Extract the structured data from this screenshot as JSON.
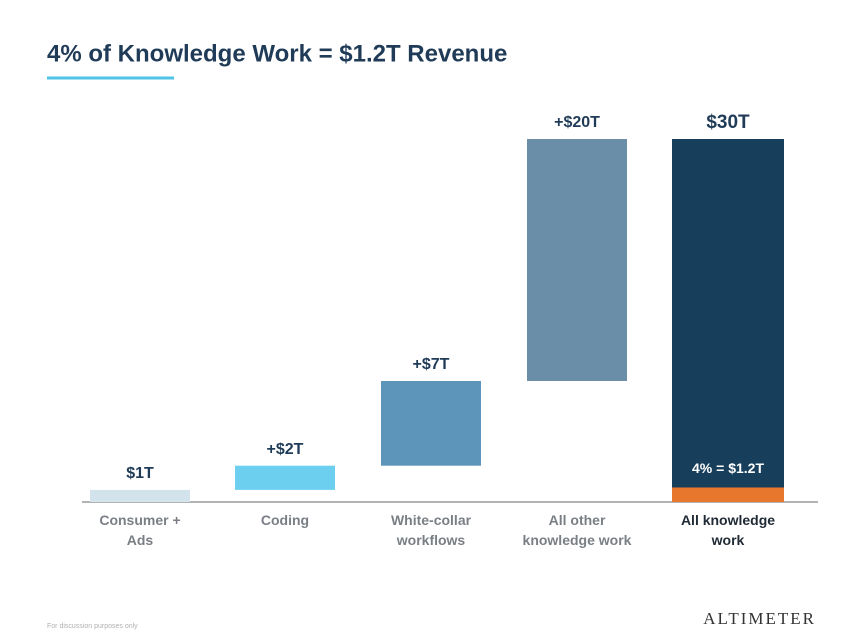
{
  "chart_data": {
    "type": "waterfall",
    "title": "4% of Knowledge Work = $1.2T Revenue",
    "categories": [
      "Consumer + Ads",
      "Coding",
      "White-collar workflows",
      "All other knowledge work",
      "All knowledge work"
    ],
    "values": [
      1,
      2,
      7,
      20,
      30
    ],
    "value_labels": [
      "$1T",
      "+$2T",
      "+$7T",
      "+$20T",
      "$30T"
    ],
    "measures": [
      "absolute",
      "relative",
      "relative",
      "relative",
      "total"
    ],
    "colors": [
      "#d3e3ec",
      "#6ccff0",
      "#5d94b9",
      "#6a8ea8",
      "#173f5c"
    ],
    "highlight": {
      "value": 1.2,
      "label": "4% = $1.2T",
      "color": "#e8772e"
    },
    "ylim": [
      0,
      30
    ]
  },
  "footer": {
    "note": "For discussion purposes only",
    "logo": "ALTIMETER"
  }
}
